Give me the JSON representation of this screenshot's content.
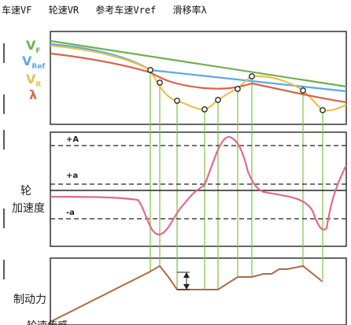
{
  "header": {
    "items": [
      "车速VF",
      "轮速VR",
      "参考车速Vref",
      "滑移率λ"
    ]
  },
  "legend": {
    "vf": {
      "main": "V",
      "sub": "F",
      "color": "#6fb04d"
    },
    "vref": {
      "main": "V",
      "sub": "Ref",
      "color": "#5aa9e6"
    },
    "vr": {
      "main": "V",
      "sub": "R",
      "color": "#e8c24a"
    },
    "lambda": {
      "main": "λ",
      "color": "#d9644a"
    }
  },
  "axes": {
    "wheel_accel_label_1": "轮",
    "wheel_accel_label_2": "加速度",
    "brake_force_label": "制动力"
  },
  "thresholds": {
    "plus_A": "+A",
    "plus_a": "+a",
    "minus_a": "-a"
  },
  "colors": {
    "accel_curve": "#e06a8f",
    "brake_curve": "#b0694a",
    "guide": "#7dc142",
    "panel_border": "#333333"
  },
  "footer_partial": "轮速传感"
}
